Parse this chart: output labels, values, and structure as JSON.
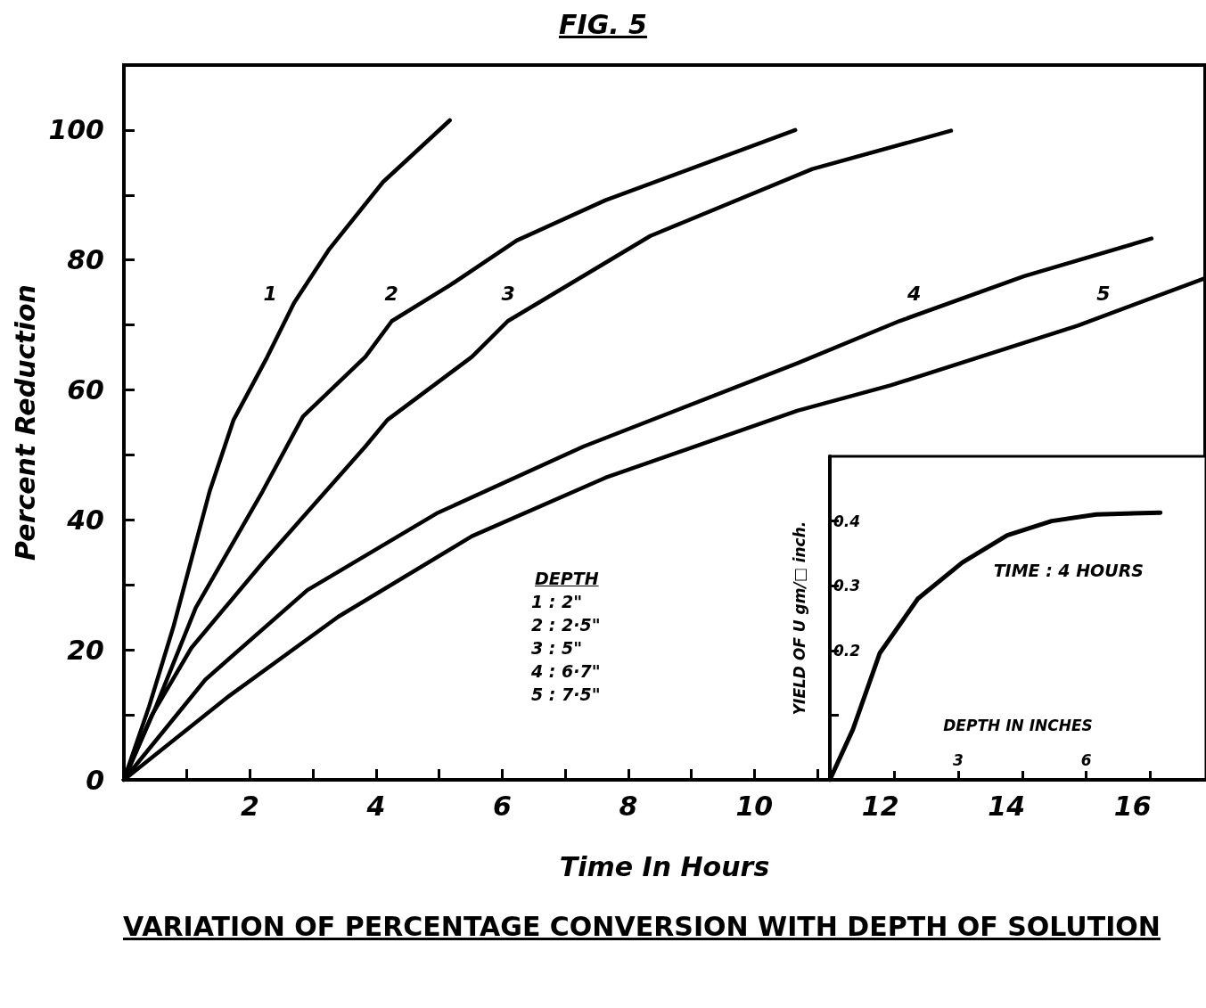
{
  "chart_data": [
    {
      "type": "line",
      "title": "FIG. 5",
      "xlabel": "Time In Hours",
      "ylabel": "Percent Reduction",
      "xlim": [
        0,
        17.15
      ],
      "ylim": [
        0,
        110
      ],
      "xticks": [
        {
          "value": 1,
          "label": null
        },
        2,
        {
          "value": 3,
          "label": null
        },
        4,
        {
          "value": 5,
          "label": null
        },
        6,
        {
          "value": 7,
          "label": null
        },
        8,
        {
          "value": 9,
          "label": null
        },
        10,
        {
          "value": 11,
          "label": null
        },
        12,
        {
          "value": 13,
          "label": null
        },
        14,
        {
          "value": 15,
          "label": null
        },
        16
      ],
      "yticks": [
        0,
        {
          "value": 10,
          "label": null
        },
        20,
        {
          "value": 30,
          "label": null
        },
        40,
        {
          "value": 50,
          "label": null
        },
        60,
        {
          "value": 70,
          "label": null
        },
        80,
        {
          "value": 90,
          "label": null
        },
        100
      ],
      "marker": "none",
      "line_style": "solid",
      "grid": false,
      "legend": false,
      "annotations": [
        "VARIATION OF PERCENTAGE CONVERSION WITH DEPTH OF SOLUTION",
        "DEPTH",
        "1 : 2\"",
        "2 : 2·5\"",
        "3 : 5\"",
        "4 : 6·7\"",
        "5 : 7·5\""
      ],
      "series": [
        {
          "name": "1",
          "color": "#000000",
          "x": [
            0,
            0.4,
            0.79,
            1.36,
            1.74,
            2.27,
            2.7,
            3.26,
            4.11,
            5.17
          ],
          "values": [
            0,
            11.3,
            23.7,
            44.4,
            55.4,
            65,
            73.4,
            81.7,
            92,
            101.5
          ]
        },
        {
          "name": "2",
          "color": "#000000",
          "x": [
            0,
            0.51,
            1.14,
            2.2,
            2.84,
            3.83,
            4.25,
            5.17,
            6.23,
            7.64,
            10.65
          ],
          "values": [
            0,
            11.3,
            26.5,
            44.4,
            55.9,
            65.1,
            70.6,
            76.1,
            83,
            89.2,
            100
          ]
        },
        {
          "name": "3",
          "color": "#000000",
          "x": [
            0,
            0.44,
            1.07,
            2.2,
            3.83,
            4.18,
            5.52,
            6.09,
            8.35,
            10.92,
            13.12
          ],
          "values": [
            0,
            9.9,
            20.3,
            33.4,
            51.3,
            55.4,
            65.1,
            70.6,
            83.7,
            94,
            99.9
          ]
        },
        {
          "name": "4",
          "color": "#000000",
          "x": [
            0,
            1.29,
            2.91,
            4.96,
            7.29,
            10.68,
            12.3,
            14.28,
            16.3
          ],
          "values": [
            0,
            15.4,
            29.2,
            41,
            51.3,
            64.1,
            70.6,
            77.5,
            83.3
          ]
        },
        {
          "name": "5",
          "color": "#000000",
          "x": [
            0,
            1.64,
            3.4,
            5.52,
            7.64,
            10.68,
            12.16,
            15.13,
            17.15
          ],
          "values": [
            0,
            12.7,
            25.1,
            37.5,
            46.5,
            56.8,
            60.7,
            69.9,
            77.2
          ]
        }
      ]
    },
    {
      "type": "line",
      "xlabel": "DEPTH IN INCHES",
      "ylabel": "YIELD OF U gm/□ inch.",
      "xlim": [
        0,
        8.8
      ],
      "ylim": [
        0,
        0.5
      ],
      "xticks": [
        {
          "value": 1.5,
          "label": null
        },
        3,
        {
          "value": 4.5,
          "label": null
        },
        6,
        {
          "value": 7.5,
          "label": null
        }
      ],
      "yticks": [
        {
          "value": 0.1,
          "label": null
        },
        0.2,
        0.3,
        0.4
      ],
      "marker": "none",
      "line_style": "solid",
      "grid": false,
      "legend": false,
      "annotations": [
        "TIME : 4 HOURS"
      ],
      "series": [
        {
          "color": "#000000",
          "x": [
            0,
            0.54,
            1.17,
            2.06,
            3.1,
            4.15,
            5.19,
            6.23,
            7.73
          ],
          "values": [
            0,
            0.078,
            0.196,
            0.28,
            0.336,
            0.378,
            0.4,
            0.41,
            0.413
          ]
        }
      ]
    }
  ]
}
